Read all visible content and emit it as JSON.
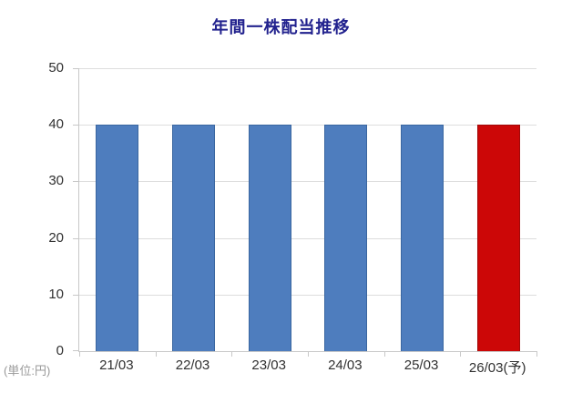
{
  "chart_data": {
    "type": "bar",
    "title": "年間一株配当推移",
    "unit_label": "(単位:円)",
    "xlabel": "",
    "ylabel": "",
    "categories": [
      "21/03",
      "22/03",
      "23/03",
      "24/03",
      "25/03",
      "26/03(予)"
    ],
    "values": [
      40,
      40,
      40,
      40,
      40,
      40
    ],
    "bar_colors": [
      "#4E7DBE",
      "#4E7DBE",
      "#4E7DBE",
      "#4E7DBE",
      "#4E7DBE",
      "#CC0707"
    ],
    "bar_border_colors": [
      "#3A66A0",
      "#3A66A0",
      "#3A66A0",
      "#3A66A0",
      "#3A66A0",
      "#A00909"
    ],
    "ylim": [
      0,
      50
    ],
    "yticks": [
      0,
      10,
      20,
      30,
      40,
      50
    ],
    "grid": true,
    "legend": "none",
    "colors": {
      "title": "#22228E",
      "grid": "#DDDDDD",
      "axis": "#C8C8C8",
      "tick_label": "#303030",
      "unit_label": "#999999",
      "background": "#FFFFFF"
    }
  }
}
